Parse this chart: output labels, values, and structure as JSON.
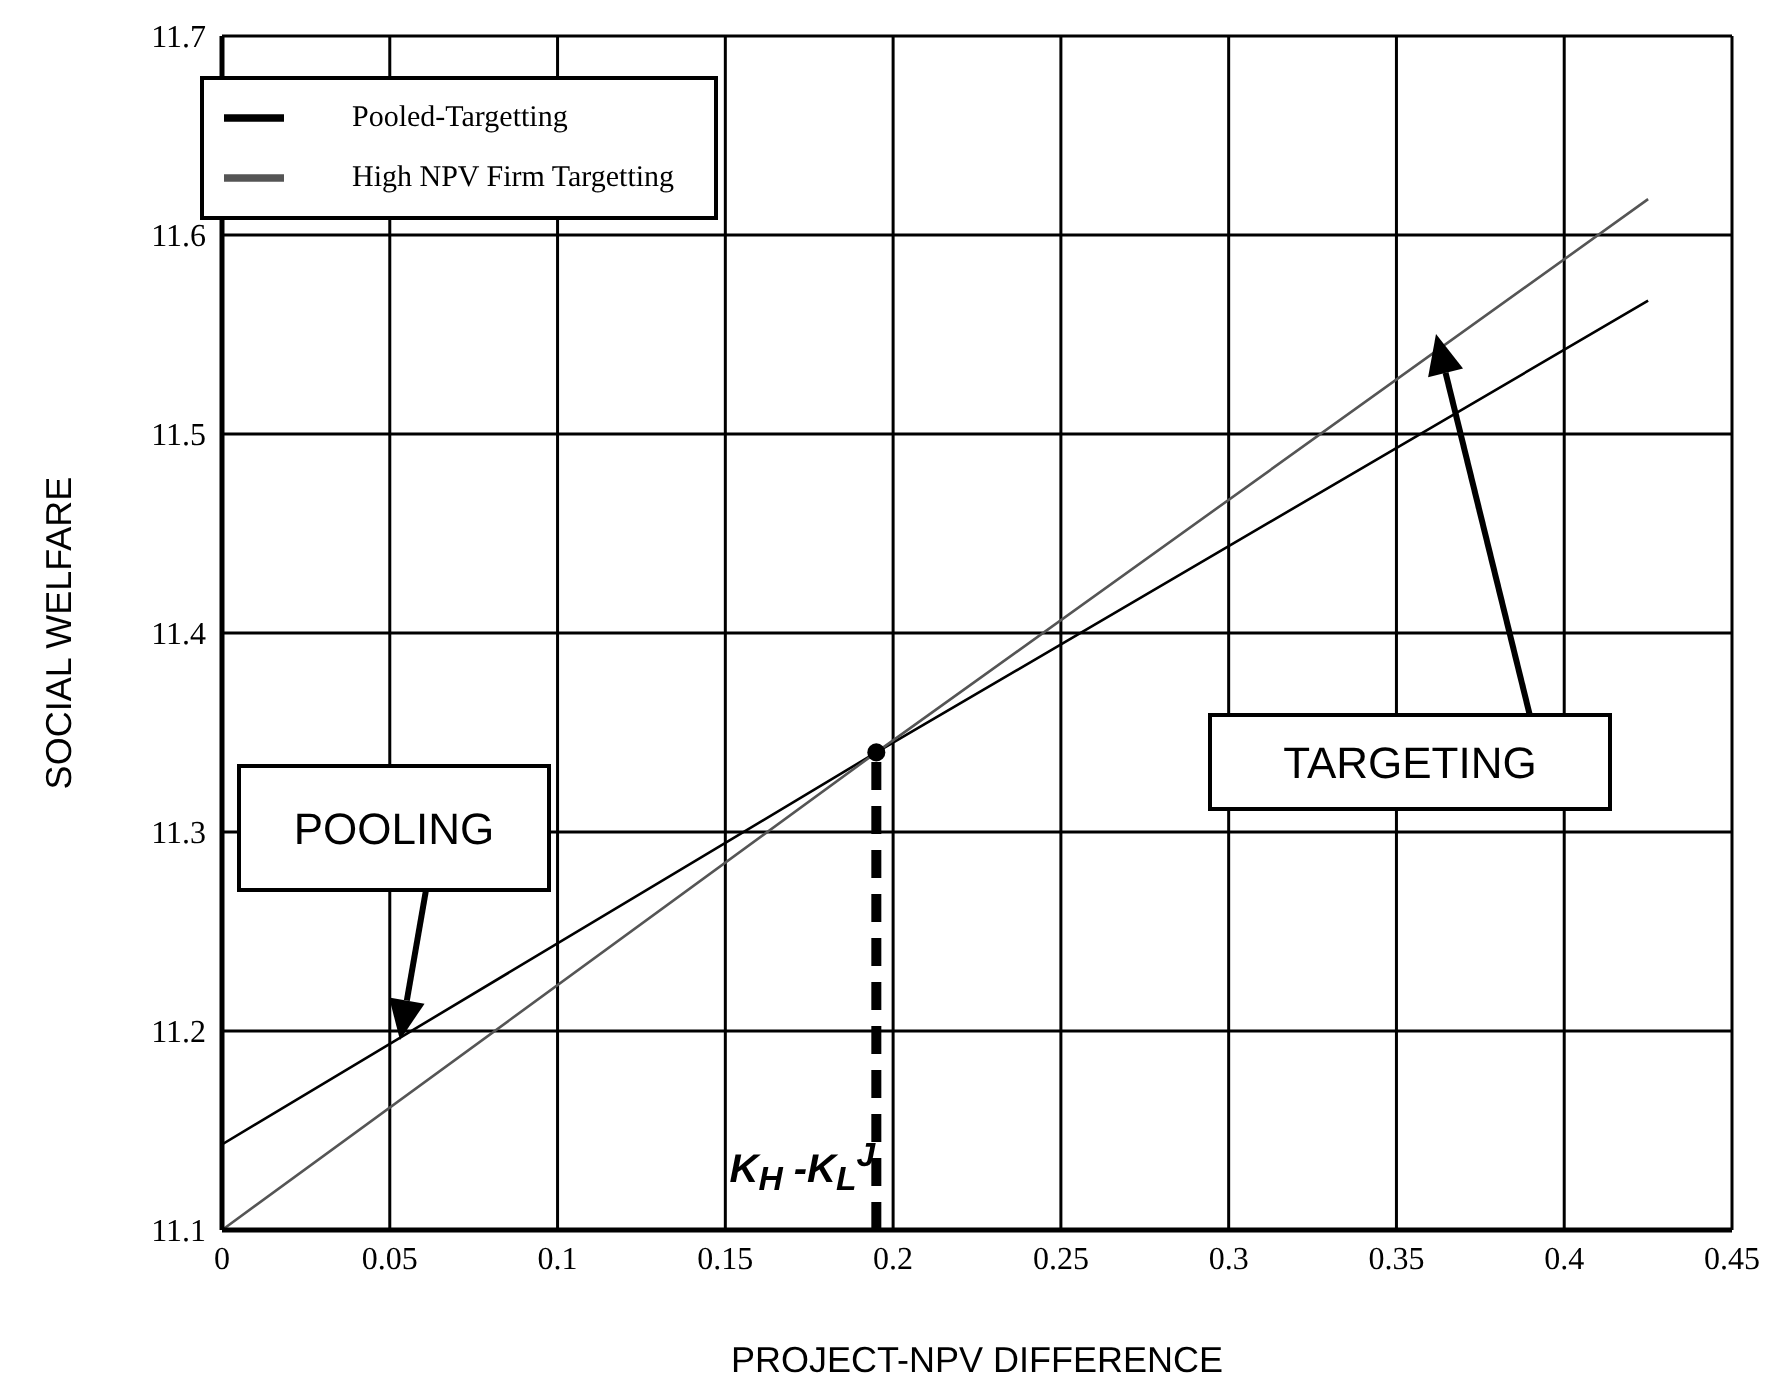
{
  "chart_data": {
    "type": "line",
    "xlabel": "PROJECT-NPV DIFFERENCE",
    "ylabel": "SOCIAL WELFARE",
    "xlim": [
      0,
      0.45
    ],
    "xticks": [
      0,
      0.05,
      0.1,
      0.15,
      0.2,
      0.25,
      0.3,
      0.35,
      0.4,
      0.45
    ],
    "ylim": [
      11.1,
      11.7
    ],
    "yticks": [
      11.1,
      11.2,
      11.3,
      11.4,
      11.5,
      11.6,
      11.7
    ],
    "grid": true,
    "legend": "top left",
    "marker": "none",
    "line_style": "solid",
    "series": [
      {
        "name": "Pooled-Targetting",
        "color": "#000000",
        "x": [
          0,
          0.195,
          0.425
        ],
        "values": [
          11.143,
          11.34,
          11.567
        ]
      },
      {
        "name": "High NPV Firm Targetting",
        "color": "#555555",
        "x": [
          0,
          0.195,
          0.425
        ],
        "values": [
          11.1,
          11.34,
          11.618
        ]
      },
      {
        "type": "line",
        "color": "#000000",
        "line_style": "dashed",
        "x": [
          0.195,
          0.195
        ],
        "values": [
          11.1,
          11.34
        ]
      },
      {
        "type": "scatter",
        "color": "#000000",
        "marker": "circle",
        "x": [
          0.195
        ],
        "values": [
          11.34
        ]
      }
    ],
    "annotations": [
      "POOLING",
      "TARGETING",
      {
        "text": "K$_{H}$ -K$_{L}$$^{J}$",
        "x": 0.195,
        "y": 11.1
      }
    ]
  }
}
